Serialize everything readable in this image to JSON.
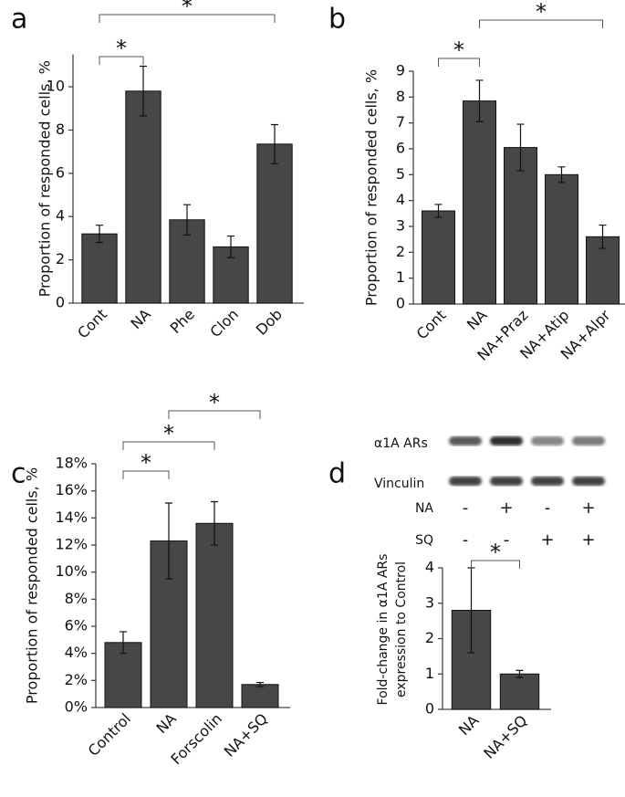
{
  "chart_data": [
    {
      "type": "bar",
      "panel_label": "a",
      "ylabel": "Proportion of responded cells, %",
      "categories": [
        "Cont",
        "NA",
        "Phe",
        "Clon",
        "Dob"
      ],
      "values": [
        3.2,
        9.8,
        3.85,
        2.6,
        7.35
      ],
      "errors": [
        0.4,
        1.15,
        0.7,
        0.5,
        0.9
      ],
      "color": "#474747",
      "ylim": [
        0,
        11.5
      ],
      "yticks": [
        0,
        2,
        4,
        6,
        8,
        10
      ],
      "annotations": [
        "*",
        "*"
      ]
    },
    {
      "type": "bar",
      "panel_label": "b",
      "ylabel": "Proportion of responded cells, %",
      "categories": [
        "Cont",
        "NA",
        "NA+Praz",
        "NA+Atip",
        "NA+Alpr"
      ],
      "values": [
        3.6,
        7.85,
        6.05,
        5.0,
        2.6
      ],
      "errors": [
        0.25,
        0.8,
        0.9,
        0.3,
        0.45
      ],
      "color": "#474747",
      "ylim": [
        0,
        9
      ],
      "yticks": [
        0,
        1,
        2,
        3,
        4,
        5,
        6,
        7,
        8,
        9
      ],
      "annotations": [
        "*",
        "*"
      ]
    },
    {
      "type": "bar",
      "panel_label": "c",
      "ylabel": "Proportion of responded cells, %",
      "categories": [
        "Control",
        "NA",
        "Forscolin",
        "NA+SQ"
      ],
      "values": [
        4.8,
        12.3,
        13.6,
        1.7
      ],
      "errors": [
        0.8,
        2.8,
        1.6,
        0.15
      ],
      "color": "#474747",
      "ylim": [
        0,
        18
      ],
      "yticks": [
        {
          "value": 0,
          "label": "0%"
        },
        {
          "value": 2,
          "label": "2%"
        },
        {
          "value": 4,
          "label": "4%"
        },
        {
          "value": 6,
          "label": "6%"
        },
        {
          "value": 8,
          "label": "8%"
        },
        {
          "value": 10,
          "label": "10%"
        },
        {
          "value": 12,
          "label": "12%"
        },
        {
          "value": 14,
          "label": "14%"
        },
        {
          "value": 16,
          "label": "16%"
        },
        {
          "value": 18,
          "label": "18%"
        }
      ],
      "annotations": [
        "*",
        "*",
        "*"
      ]
    },
    {
      "type": "bar",
      "panel_label": "d",
      "ylabel": [
        "Fold-change in α1A ARs",
        "expression to Control"
      ],
      "categories": [
        "NA",
        "NA+SQ"
      ],
      "values": [
        2.8,
        1.0
      ],
      "errors": [
        1.2,
        0.1
      ],
      "color": "#474747",
      "ylim": [
        0,
        4
      ],
      "yticks": [
        0,
        1,
        2,
        3,
        4
      ],
      "annotations": [
        "*"
      ],
      "blot": {
        "rows": [
          "α1A ARs",
          "Vinculin"
        ],
        "treatments": [
          {
            "name": "NA",
            "signs": [
              "-",
              "+",
              "-",
              "+"
            ]
          },
          {
            "name": "SQ",
            "signs": [
              "-",
              "-",
              "+",
              "+"
            ]
          }
        ]
      }
    }
  ]
}
